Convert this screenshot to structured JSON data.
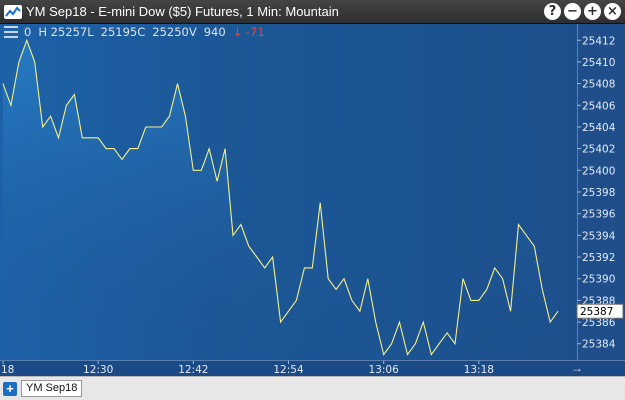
{
  "window": {
    "title": "YM Sep18 - E-mini Dow ($5) Futures, 1 Min: Mountain",
    "controls": [
      {
        "name": "help-button",
        "glyph": "?"
      },
      {
        "name": "minimize-button",
        "glyph": "−"
      },
      {
        "name": "maximize-button",
        "glyph": "+"
      },
      {
        "name": "close-button",
        "glyph": "×"
      }
    ]
  },
  "info": {
    "open": "0",
    "high": "H 25257L",
    "close": "25195C",
    "volume": "25250V",
    "volume_count": "940",
    "change": "↓ -71"
  },
  "colors": {
    "line": "#f3f08a",
    "change": "#ff3b30",
    "accent": "#1b6ec2"
  },
  "chart_data": {
    "type": "area",
    "y_ticks": [
      25384,
      25386,
      25388,
      25390,
      25392,
      25394,
      25396,
      25398,
      25400,
      25402,
      25404,
      25406,
      25408,
      25410,
      25412
    ],
    "y_tick_labels": [
      "25384",
      "25386",
      "25388",
      "25390",
      "25392",
      "25394",
      "25396",
      "25398",
      "25400",
      "25402",
      "25404",
      "25406",
      "25408",
      "25410",
      "25412"
    ],
    "ylim": [
      25382.5,
      25413.5
    ],
    "x_tick_labels": [
      "18",
      "12:30",
      "12:42",
      "12:54",
      "13:06",
      "13:18"
    ],
    "x_tick_minutes": [
      0,
      12,
      24,
      36,
      48,
      60
    ],
    "current_price": "25387",
    "current_value": 25387,
    "series": [
      {
        "minutes": [
          0,
          1,
          2,
          3,
          4,
          5,
          6,
          7,
          8,
          9,
          10,
          11,
          12,
          13,
          14,
          15,
          16,
          17,
          18,
          19,
          20,
          21,
          22,
          23,
          24,
          25,
          26,
          27,
          28,
          29,
          30,
          31,
          32,
          33,
          34,
          35,
          36,
          37,
          38,
          39,
          40,
          41,
          42,
          43,
          44,
          45,
          46,
          47,
          48,
          49,
          50,
          51,
          52,
          53,
          54,
          55,
          56,
          57,
          58,
          59,
          60,
          61,
          62,
          63,
          64,
          65,
          66,
          67,
          68,
          69,
          70
        ],
        "values": [
          25408,
          25406,
          25410,
          25412,
          25410,
          25404,
          25405,
          25403,
          25406,
          25407,
          25403,
          25403,
          25403,
          25402,
          25402,
          25401,
          25402,
          25402,
          25404,
          25404,
          25404,
          25405,
          25408,
          25405,
          25400,
          25400,
          25402,
          25399,
          25402,
          25394,
          25395,
          25393,
          25392,
          25391,
          25392,
          25386,
          25387,
          25388,
          25391,
          25391,
          25397,
          25390,
          25389,
          25390,
          25388,
          25387,
          25390,
          25386,
          25383,
          25384,
          25386,
          25383,
          25384,
          25386,
          25383,
          25384,
          25385,
          25384,
          25390,
          25388,
          25388,
          25389,
          25391,
          25390,
          25387,
          25395,
          25394,
          25393,
          25389,
          25386,
          25387
        ]
      }
    ],
    "xlim": [
      0,
      72
    ]
  },
  "tabs": {
    "add_label": "+",
    "items": [
      "YM Sep18"
    ]
  },
  "time_axis": {
    "scroll_arrow": "→"
  }
}
